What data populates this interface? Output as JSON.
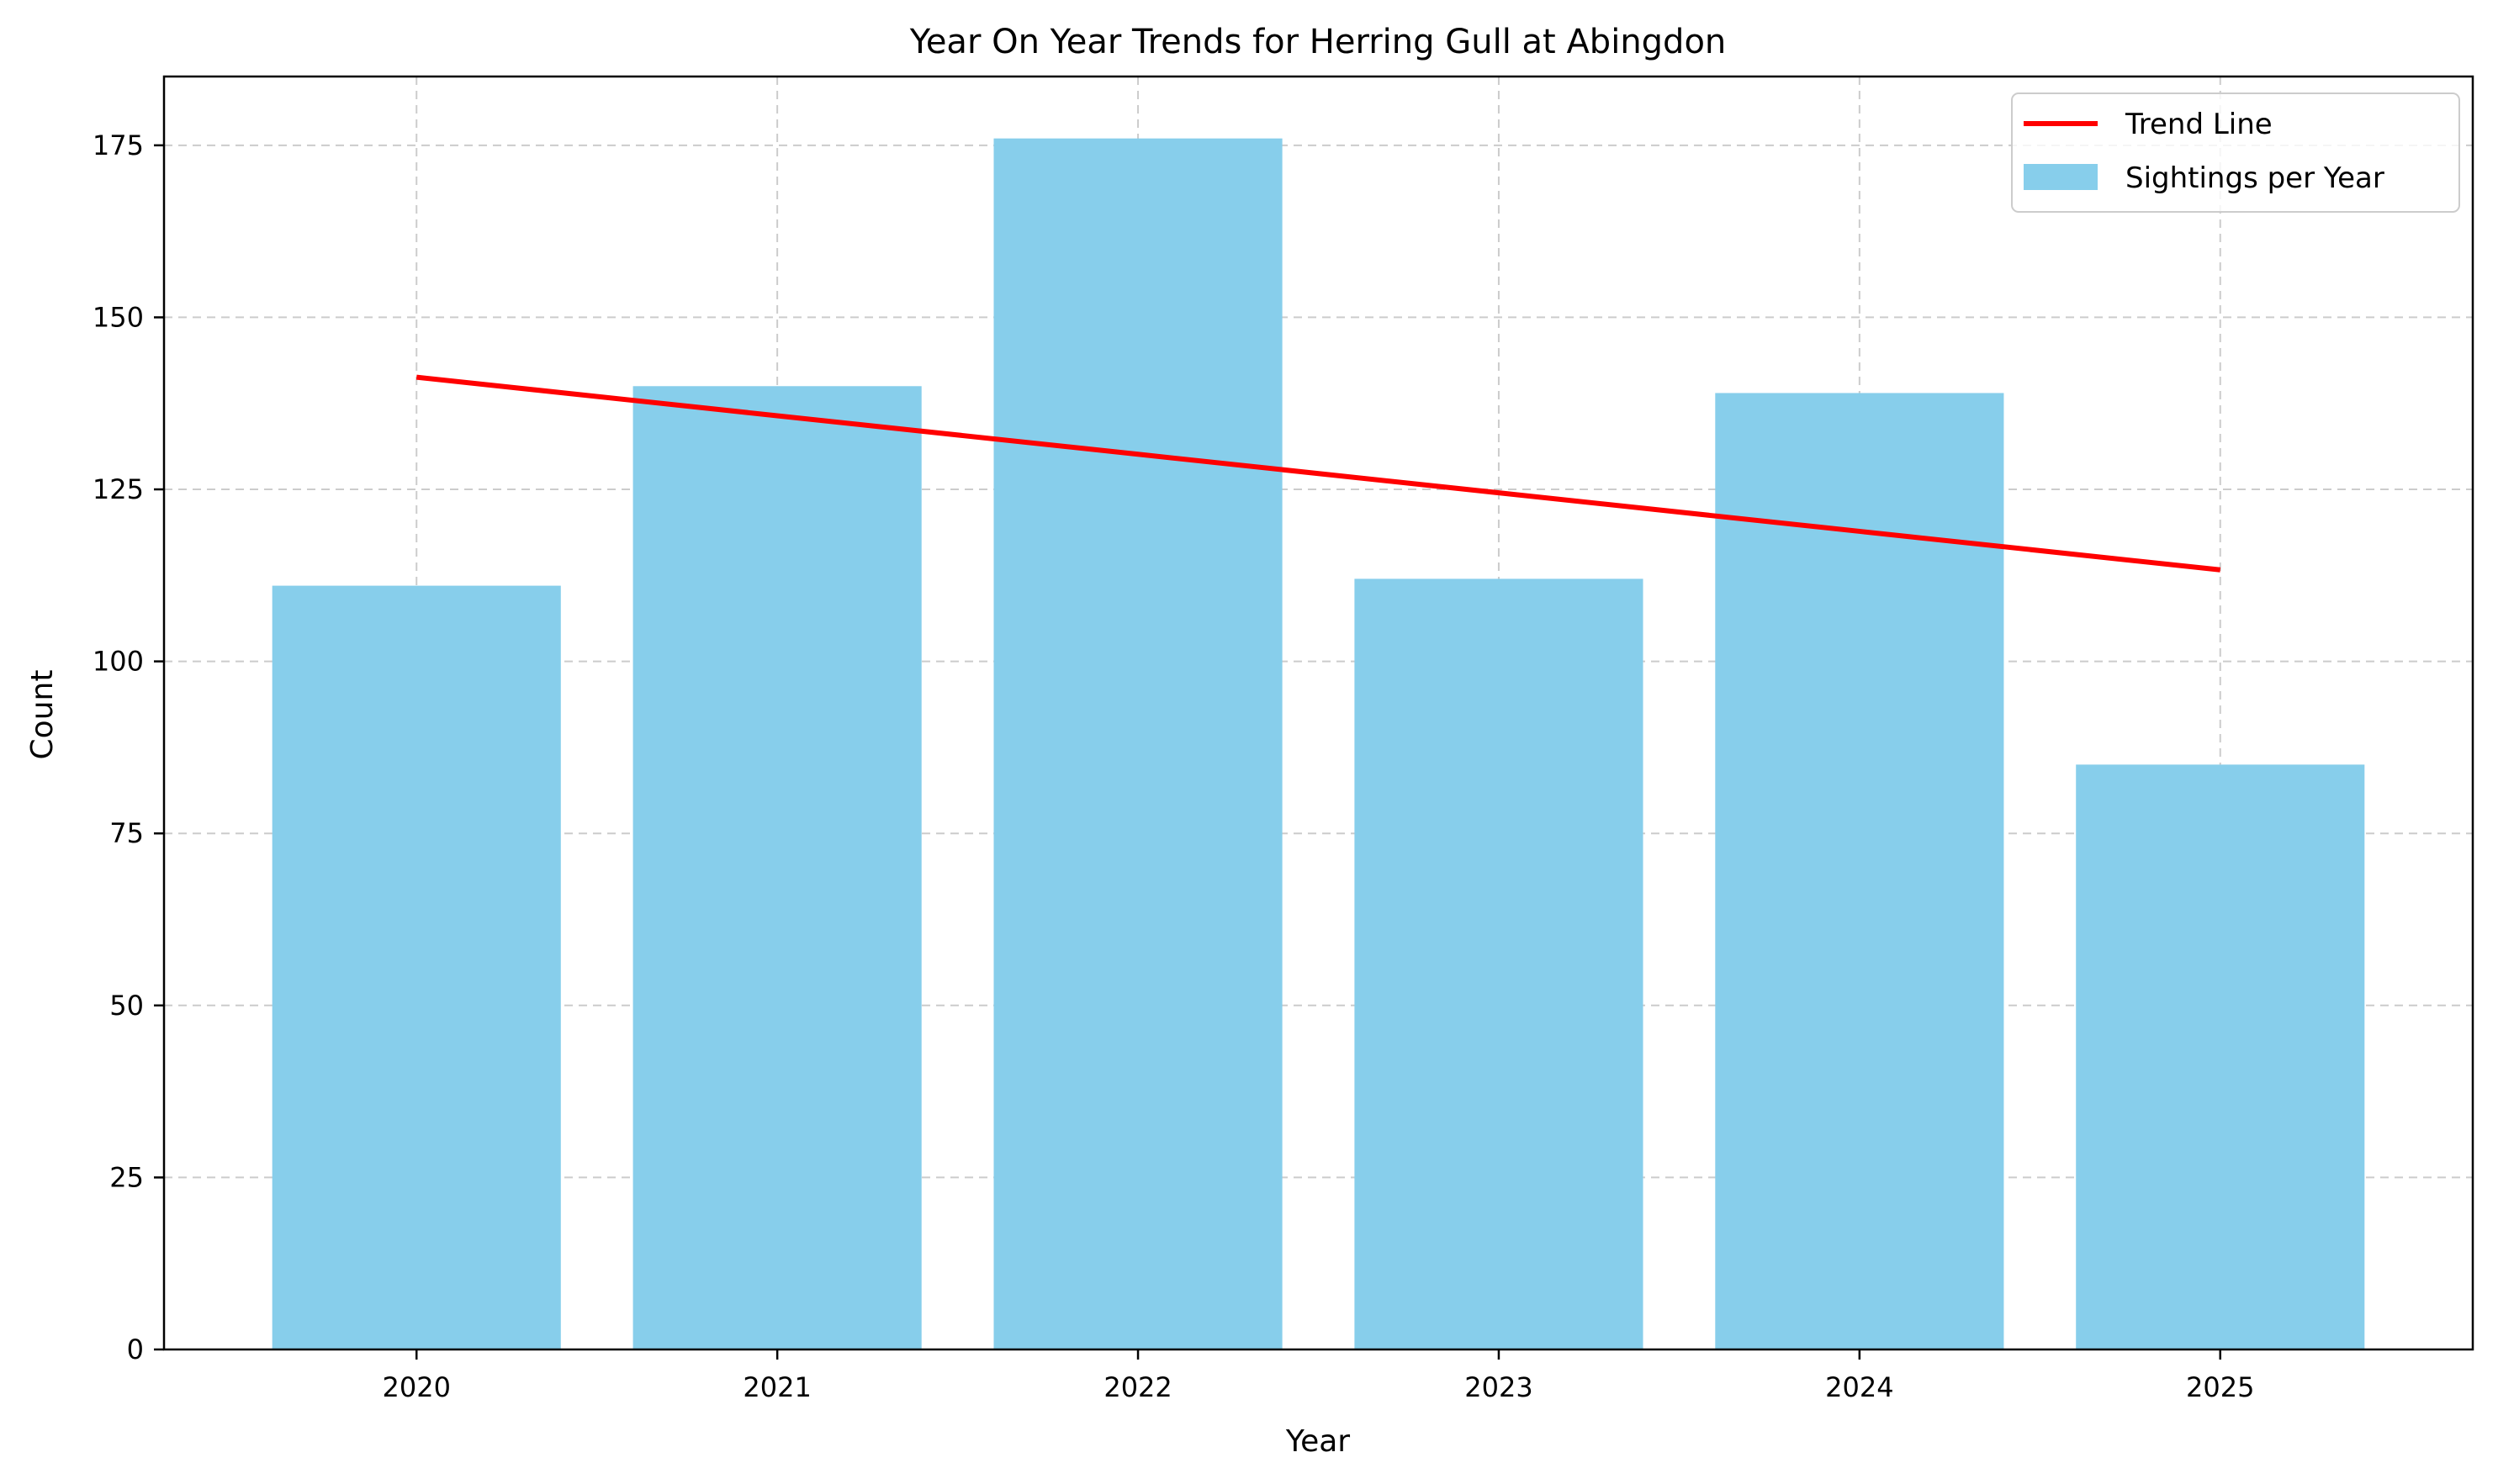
{
  "chart_data": {
    "type": "bar",
    "title": "Year On Year Trends for Herring Gull at Abingdon",
    "xlabel": "Year",
    "ylabel": "Count",
    "categories": [
      "2020",
      "2021",
      "2022",
      "2023",
      "2024",
      "2025"
    ],
    "series": [
      {
        "name": "Sightings per Year",
        "type": "bar",
        "color": "#87CEEB",
        "values": [
          111,
          140,
          176,
          112,
          139,
          85
        ]
      },
      {
        "name": "Trend Line",
        "type": "line",
        "color": "#FF0000",
        "values": [
          141.3,
          135.7,
          130.1,
          124.5,
          118.9,
          113.3
        ]
      }
    ],
    "ylim": [
      0,
      185
    ],
    "yticks": [
      0,
      25,
      50,
      75,
      100,
      125,
      150,
      175
    ],
    "grid": true,
    "legend_position": "top-right"
  }
}
